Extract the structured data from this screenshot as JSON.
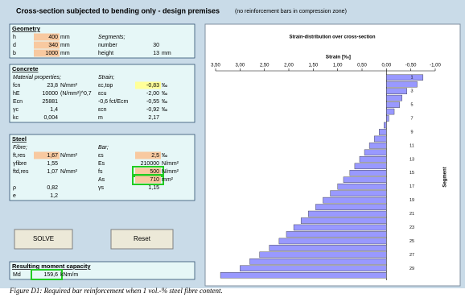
{
  "header": {
    "title": "Cross-section subjected to bending only - design premises",
    "note": "(no reinforcement bars in compression zone)"
  },
  "panels": [
    {
      "title": "Geometry",
      "rows": [
        {
          "left": [
            "h",
            "400",
            "mm"
          ],
          "right": [
            "Segments;"
          ]
        },
        {
          "left": [
            "d",
            "340",
            "mm"
          ],
          "right": [
            "number",
            "30"
          ]
        },
        {
          "left": [
            "b",
            "1000",
            "mm"
          ],
          "right": [
            "height",
            "13",
            "mm"
          ]
        }
      ]
    },
    {
      "title": "Concrete",
      "rows": [
        {
          "left": [
            "Material properties;"
          ],
          "right": [
            "Strain;"
          ]
        },
        {
          "left": [
            "fcn",
            "23,8",
            "N/mm²"
          ],
          "right": [
            "εc,top",
            "-0,83",
            "‰"
          ]
        },
        {
          "left": [
            "hE",
            "10000",
            "(N/mm²)^0,7"
          ],
          "right": [
            "εcu",
            "-2,00",
            "‰"
          ]
        },
        {
          "left": [
            "Ecn",
            "25881"
          ],
          "right": [
            "-0,6 fct/Ecm",
            "-0,55",
            "‰"
          ]
        },
        {
          "left": [
            "γc",
            "1,4"
          ],
          "right": [
            "εcn",
            "-0,92",
            "‰"
          ]
        },
        {
          "left": [
            "kc",
            "0,004"
          ],
          "right": [
            "m",
            "2,17"
          ]
        }
      ]
    },
    {
      "title": "Steel",
      "rows": [
        {
          "left": [
            "Fibre;"
          ],
          "right": [
            "Bar;"
          ]
        },
        {
          "left": [
            "ft,res",
            "1,67",
            "N/mm²"
          ],
          "right": [
            "εs",
            "2,5",
            "‰"
          ]
        },
        {
          "left": [
            "γfibre",
            "1,55"
          ],
          "right": [
            "Es",
            "210000",
            "N/mm²"
          ]
        },
        {
          "left": [
            "ftd,res",
            "1,07",
            "N/mm²"
          ],
          "right": [
            "fs",
            "500",
            "N/mm²"
          ]
        },
        {
          "right": [
            "As",
            "710",
            "mm²"
          ]
        },
        {
          "left": [
            "ρ",
            "0,82"
          ],
          "right": [
            "γs",
            "1,15"
          ]
        },
        {
          "left": [
            "e",
            "1,2"
          ]
        }
      ]
    },
    {
      "title": "Resulting moment capacity",
      "rows": [
        {
          "left": [
            "Md",
            "159,6",
            "kNm/m"
          ]
        }
      ]
    }
  ],
  "buttons": [
    "SOLVE",
    "Reset"
  ],
  "chart_data": {
    "type": "hbar",
    "title": "Strain-distribution over cross-section",
    "x_label": "Strain [‰]",
    "y_label": "Segment",
    "categories": [
      "1",
      null,
      "3",
      null,
      "5",
      null,
      "7",
      null,
      "9",
      null,
      "11",
      null,
      "13",
      null,
      "15",
      null,
      "17",
      null,
      "19",
      null,
      "21",
      null,
      "23",
      null,
      "25",
      null,
      "27",
      null,
      "29",
      null
    ],
    "values": [
      -0.75,
      -0.63,
      -0.42,
      -0.32,
      -0.27,
      -0.16,
      -0.05,
      0.05,
      0.15,
      0.25,
      0.35,
      0.45,
      0.55,
      0.65,
      0.75,
      0.88,
      1.0,
      1.15,
      1.3,
      1.45,
      1.6,
      1.75,
      1.9,
      2.05,
      2.2,
      2.4,
      2.6,
      2.8,
      3.0,
      3.4
    ],
    "color": "#9999ff",
    "xlim": [
      3.5,
      -1.0
    ],
    "xticks": [
      {
        "value": 3.5,
        "label": "3,50"
      },
      {
        "value": 3.0,
        "label": "3,00"
      },
      {
        "value": 2.5,
        "label": "2,50"
      },
      {
        "value": 2.0,
        "label": "2,00"
      },
      {
        "value": 1.5,
        "label": "1,50"
      },
      {
        "value": 1.0,
        "label": "1,00"
      },
      {
        "value": 0.5,
        "label": "0,50"
      },
      {
        "value": 0,
        "label": "0,00"
      },
      {
        "value": -0.5,
        "label": "-0,50"
      },
      {
        "value": -1.0,
        "label": "-1,00"
      }
    ]
  },
  "caption": "Figure D1: Required bar reinforcement when 1 vol.-% steel fibre content."
}
